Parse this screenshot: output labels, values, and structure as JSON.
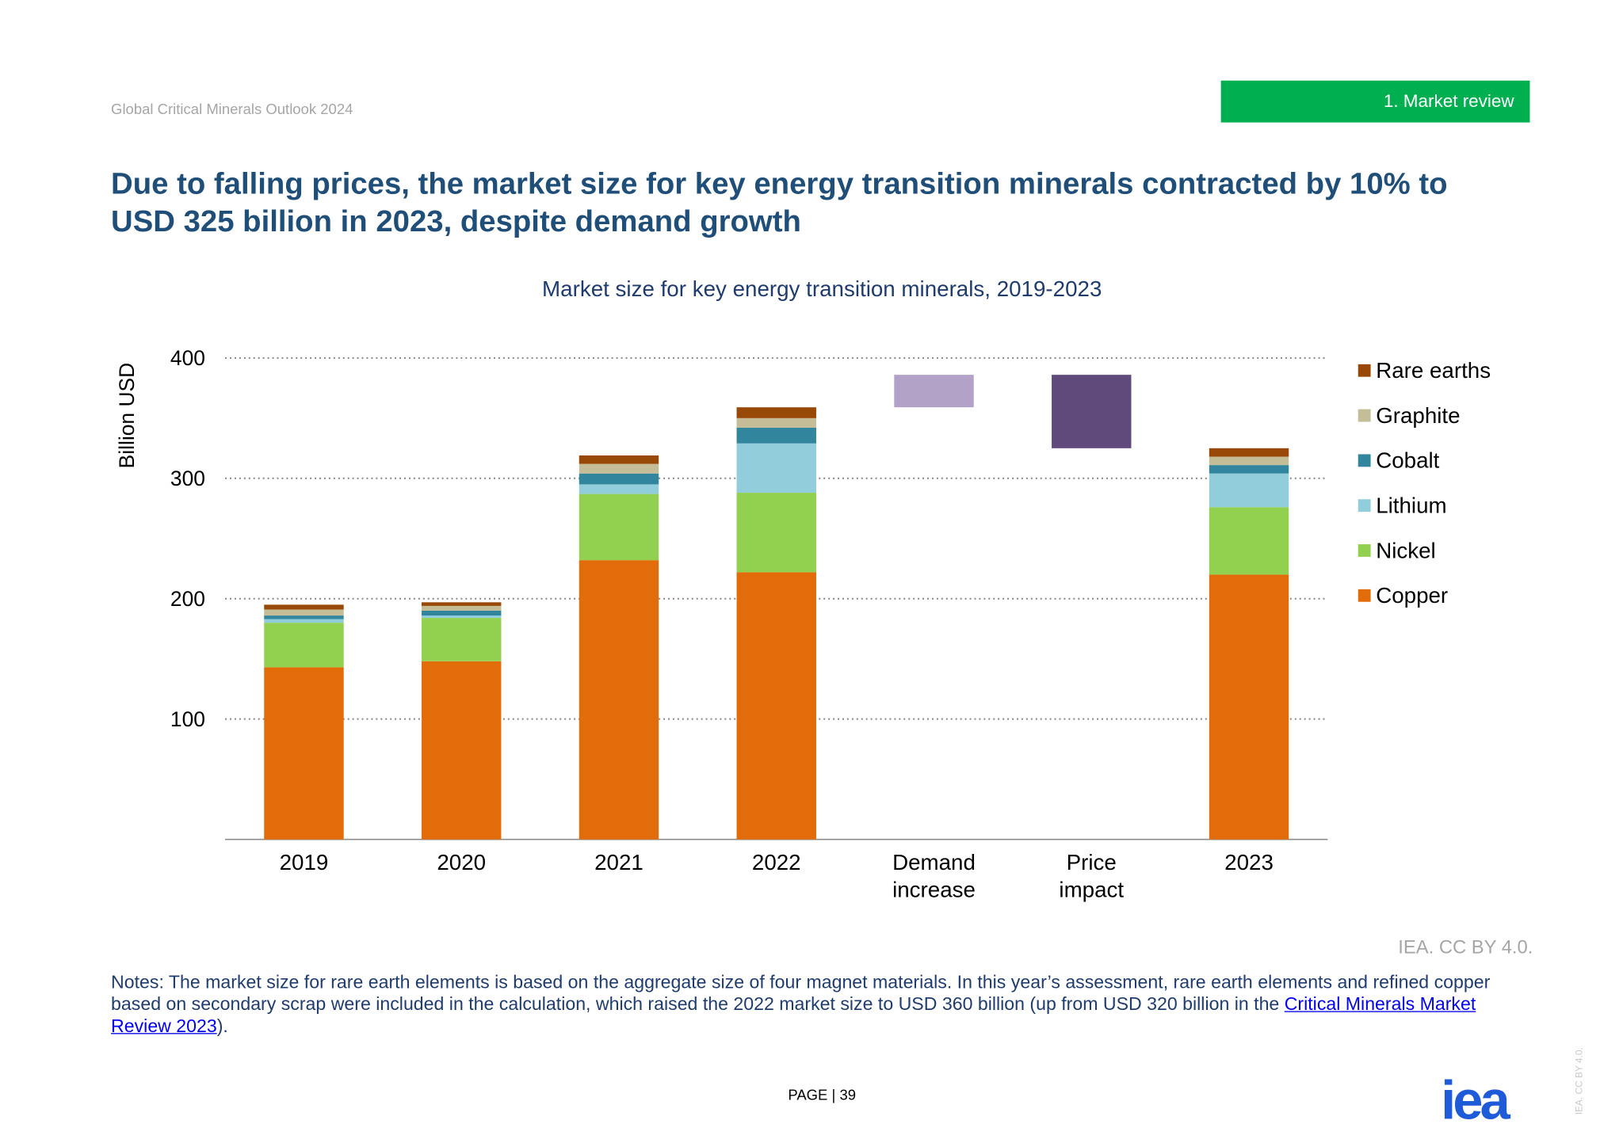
{
  "header": {
    "doc_title": "Global Critical Minerals Outlook 2024",
    "section_label": "1.    Market review",
    "section_color": "#00b050"
  },
  "headline": "Due to falling prices, the market size for key energy transition minerals contracted by 10% to USD 325 billion in 2023, despite demand growth",
  "chart_data": {
    "type": "bar",
    "stacked": true,
    "waterfall": true,
    "title": "Market size for key energy transition minerals, 2019-2023",
    "ylabel": "Billion USD",
    "ylim": [
      0,
      400
    ],
    "yticks": [
      100,
      200,
      300,
      400
    ],
    "grid": true,
    "legend_position": "right",
    "categories": [
      "2019",
      "2020",
      "2021",
      "2022",
      "Demand increase",
      "Price impact",
      "2023"
    ],
    "series": [
      {
        "name": "Copper",
        "color": "#E36C0A",
        "values": [
          143,
          148,
          232,
          222,
          null,
          null,
          220
        ]
      },
      {
        "name": "Nickel",
        "color": "#92D050",
        "values": [
          37,
          36,
          55,
          66,
          null,
          null,
          56
        ]
      },
      {
        "name": "Lithium",
        "color": "#92CDDC",
        "values": [
          3,
          2,
          8,
          41,
          null,
          null,
          28
        ]
      },
      {
        "name": "Cobalt",
        "color": "#31859C",
        "values": [
          3,
          4,
          9,
          13,
          null,
          null,
          7
        ]
      },
      {
        "name": "Graphite",
        "color": "#C4BD97",
        "values": [
          5,
          4,
          8,
          8,
          null,
          null,
          7
        ]
      },
      {
        "name": "Rare earths",
        "color": "#984807",
        "values": [
          4,
          3,
          7,
          9,
          null,
          null,
          7
        ]
      }
    ],
    "waterfall_steps": [
      {
        "category": "Demand increase",
        "from": 359,
        "to": 386,
        "color": "#B3A2C7"
      },
      {
        "category": "Price impact",
        "from": 386,
        "to": 325,
        "color": "#604A7B"
      }
    ]
  },
  "source": "IEA. CC BY 4.0.",
  "notes": {
    "text": "Notes: The market size for rare earth elements is based on the aggregate size of four magnet materials. In this year’s assessment, rare earth elements and refined copper based on secondary scrap were included in the calculation, which raised the 2022 market size to USD 360 billion (up from USD 320 billion in the ",
    "link": "Critical Minerals Market Review 2023",
    "end": ")."
  },
  "footer": {
    "page_label": "PAGE | 39",
    "side_text": "IEA. CC BY 4.0.",
    "logo": "iea"
  }
}
